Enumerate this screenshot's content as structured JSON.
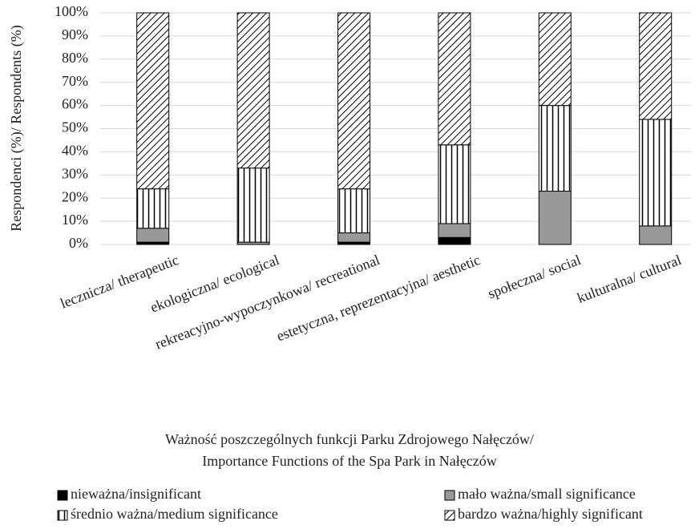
{
  "chart_data": {
    "type": "stacked_bar",
    "y_label": "Respondenci (%)/  Respondents (%)",
    "x_label": [
      "Ważność poszczególnych  funkcji Parku Zdrojowego Nałęczów/",
      "Importance Functions of the Spa Park in Nałęczów"
    ],
    "categories": [
      "lecznicza/ therapeutic",
      "ekologiczna/ ecological",
      "rekreacyjno-wypoczynkowa/ recreational",
      "estetyczna, reprezentacyjna/ aesthetic",
      "społeczna/ social",
      "kulturalna/ cultural"
    ],
    "series": [
      {
        "name": "nieważna/insignificant",
        "color": "#000000",
        "pattern": "solid",
        "values": [
          1,
          0,
          1,
          3,
          0,
          0
        ]
      },
      {
        "name": "mało ważna/small significance",
        "color": "#999999",
        "pattern": "solid",
        "values": [
          6,
          1,
          4,
          6,
          23,
          8
        ]
      },
      {
        "name": "średnio ważna/medium significance",
        "color": "#000000",
        "pattern": "vertical",
        "values": [
          17,
          32,
          19,
          34,
          37,
          46
        ]
      },
      {
        "name": "bardzo ważna/highly significant",
        "color": "#000000",
        "pattern": "diagonal",
        "values": [
          76,
          67,
          76,
          57,
          40,
          46
        ]
      }
    ],
    "ylim": [
      0,
      100
    ],
    "yticks": [
      {
        "value": 0,
        "label": "0%"
      },
      {
        "value": 10,
        "label": "10%"
      },
      {
        "value": 20,
        "label": "20%"
      },
      {
        "value": 30,
        "label": "30%"
      },
      {
        "value": 40,
        "label": "40%"
      },
      {
        "value": 50,
        "label": "50%"
      },
      {
        "value": 60,
        "label": "60%"
      },
      {
        "value": 70,
        "label": "70%"
      },
      {
        "value": 80,
        "label": "80%"
      },
      {
        "value": 90,
        "label": "90%"
      },
      {
        "value": 100,
        "label": "100%"
      }
    ],
    "grid": true,
    "legend": "bottom"
  }
}
